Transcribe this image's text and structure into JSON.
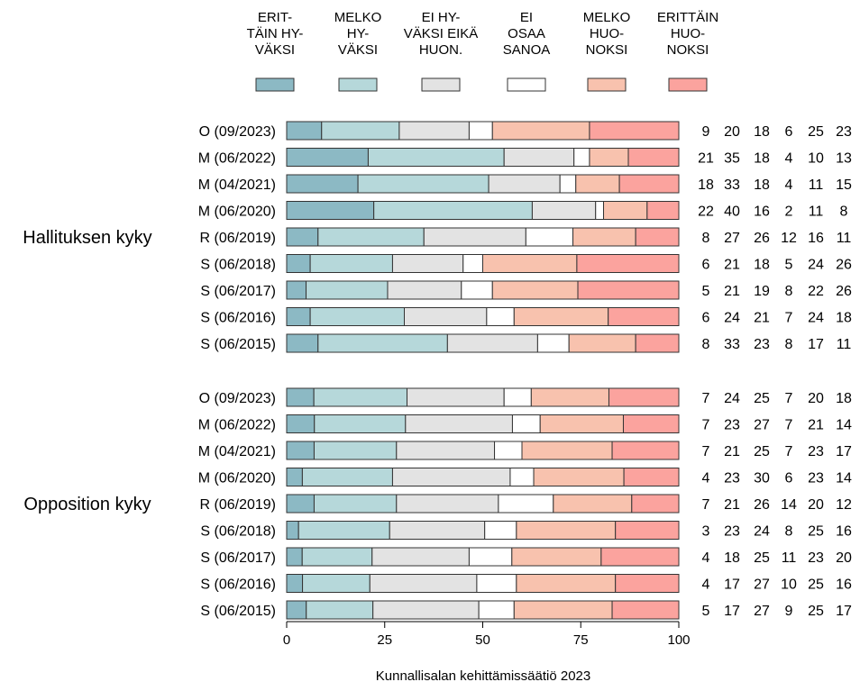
{
  "chart_data": {
    "type": "bar",
    "stacked": true,
    "orientation": "horizontal",
    "xlim": [
      0,
      100
    ],
    "xticks": [
      "0",
      "25",
      "50",
      "75",
      "100"
    ],
    "categories": [
      {
        "label": "ERIT-\nTÄIN HY-\nVÄKSI",
        "color": "#8cb9c4"
      },
      {
        "label": "MELKO\nHY-\nVÄKSI",
        "color": "#b6d8da"
      },
      {
        "label": "EI HY-\nVÄKSI EIKÄ\nHUON.",
        "color": "#e3e3e3"
      },
      {
        "label": "EI\nOSAA\nSANOA",
        "color": "#ffffff"
      },
      {
        "label": "MELKO\nHUO-\nNOKSI",
        "color": "#f8c2ae"
      },
      {
        "label": "ERITTÄIN\nHUO-\nNOKSI",
        "color": "#fba39e"
      }
    ],
    "groups": [
      {
        "name": "Hallituksen kyky",
        "rows": [
          {
            "label": "O (09/2023)",
            "values": [
              9,
              20,
              18,
              6,
              25,
              23
            ]
          },
          {
            "label": "M (06/2022)",
            "values": [
              21,
              35,
              18,
              4,
              10,
              13
            ]
          },
          {
            "label": "M (04/2021)",
            "values": [
              18,
              33,
              18,
              4,
              11,
              15
            ]
          },
          {
            "label": "M (06/2020)",
            "values": [
              22,
              40,
              16,
              2,
              11,
              8
            ]
          },
          {
            "label": "R (06/2019)",
            "values": [
              8,
              27,
              26,
              12,
              16,
              11
            ]
          },
          {
            "label": "S (06/2018)",
            "values": [
              6,
              21,
              18,
              5,
              24,
              26
            ]
          },
          {
            "label": "S (06/2017)",
            "values": [
              5,
              21,
              19,
              8,
              22,
              26
            ]
          },
          {
            "label": "S (06/2016)",
            "values": [
              6,
              24,
              21,
              7,
              24,
              18
            ]
          },
          {
            "label": "S (06/2015)",
            "values": [
              8,
              33,
              23,
              8,
              17,
              11
            ]
          }
        ]
      },
      {
        "name": "Opposition kyky",
        "rows": [
          {
            "label": "O (09/2023)",
            "values": [
              7,
              24,
              25,
              7,
              20,
              18
            ]
          },
          {
            "label": "M (06/2022)",
            "values": [
              7,
              23,
              27,
              7,
              21,
              14
            ]
          },
          {
            "label": "M (04/2021)",
            "values": [
              7,
              21,
              25,
              7,
              23,
              17
            ]
          },
          {
            "label": "M (06/2020)",
            "values": [
              4,
              23,
              30,
              6,
              23,
              14
            ]
          },
          {
            "label": "R (06/2019)",
            "values": [
              7,
              21,
              26,
              14,
              20,
              12
            ]
          },
          {
            "label": "S (06/2018)",
            "values": [
              3,
              23,
              24,
              8,
              25,
              16
            ]
          },
          {
            "label": "S (06/2017)",
            "values": [
              4,
              18,
              25,
              11,
              23,
              20
            ]
          },
          {
            "label": "S (06/2016)",
            "values": [
              4,
              17,
              27,
              10,
              25,
              16
            ]
          },
          {
            "label": "S (06/2015)",
            "values": [
              5,
              17,
              27,
              9,
              25,
              17
            ]
          }
        ]
      }
    ],
    "source": "Kunnallisalan kehittämissäätiö 2023"
  }
}
